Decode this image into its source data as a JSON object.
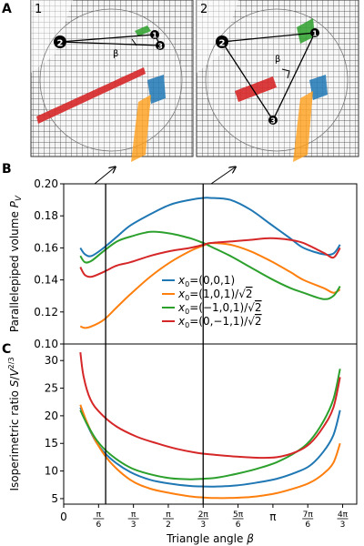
{
  "panel_labels": {
    "a": "A",
    "b": "B",
    "c": "C"
  },
  "renders": {
    "left_number": "1",
    "right_number": "2",
    "vertex_labels": [
      "2",
      "1",
      "3"
    ],
    "angle_label": "β"
  },
  "colors": {
    "blue": "#1f77b4",
    "orange": "#ff7f0e",
    "green": "#2ca02c",
    "red": "#d62728",
    "vline": "#000000"
  },
  "chart_data": [
    {
      "type": "line",
      "panel": "B",
      "ylabel": "Parallelepiped volume P_V",
      "xlim": [
        0,
        4.4
      ],
      "ylim": [
        0.1,
        0.2
      ],
      "yticks": [
        "0.10",
        "0.12",
        "0.14",
        "0.16",
        "0.18",
        "0.20"
      ],
      "grid": false,
      "legend_position": "center",
      "markers_x": [
        0.63,
        2.094
      ],
      "series": [
        {
          "name": "x0=(0,0,1)",
          "color": "blue",
          "x": [
            0.25,
            0.32,
            0.42,
            0.6,
            0.8,
            1.0,
            1.3,
            1.6,
            1.9,
            2.1,
            2.2,
            2.5,
            2.8,
            3.1,
            3.4,
            3.6,
            3.9,
            4.05,
            4.15
          ],
          "y": [
            0.16,
            0.156,
            0.155,
            0.16,
            0.167,
            0.174,
            0.181,
            0.187,
            0.19,
            0.1912,
            0.1912,
            0.19,
            0.184,
            0.175,
            0.166,
            0.16,
            0.156,
            0.1565,
            0.162
          ]
        },
        {
          "name": "x0=(1,0,1)/√2",
          "color": "orange",
          "x": [
            0.25,
            0.32,
            0.42,
            0.6,
            0.8,
            1.0,
            1.3,
            1.6,
            1.9,
            2.1,
            2.2,
            2.5,
            2.8,
            3.1,
            3.4,
            3.6,
            3.9,
            4.05,
            4.15
          ],
          "y": [
            0.111,
            0.11,
            0.111,
            0.115,
            0.123,
            0.131,
            0.142,
            0.151,
            0.158,
            0.1615,
            0.163,
            0.162,
            0.158,
            0.152,
            0.145,
            0.14,
            0.135,
            0.132,
            0.134
          ]
        },
        {
          "name": "x0=(−1,0,1)/√2",
          "color": "green",
          "x": [
            0.25,
            0.32,
            0.42,
            0.6,
            0.8,
            1.0,
            1.3,
            1.6,
            1.9,
            2.1,
            2.2,
            2.5,
            2.8,
            3.1,
            3.4,
            3.6,
            3.9,
            4.05,
            4.15
          ],
          "y": [
            0.155,
            0.151,
            0.152,
            0.158,
            0.164,
            0.167,
            0.17,
            0.169,
            0.166,
            0.163,
            0.161,
            0.155,
            0.148,
            0.141,
            0.135,
            0.132,
            0.128,
            0.13,
            0.136
          ]
        },
        {
          "name": "x0=(0,−1,1)/√2",
          "color": "red",
          "x": [
            0.25,
            0.32,
            0.42,
            0.6,
            0.8,
            1.0,
            1.3,
            1.6,
            1.9,
            2.1,
            2.2,
            2.5,
            2.8,
            3.1,
            3.4,
            3.6,
            3.9,
            4.05,
            4.15
          ],
          "y": [
            0.148,
            0.143,
            0.142,
            0.145,
            0.149,
            0.151,
            0.155,
            0.158,
            0.16,
            0.162,
            0.163,
            0.164,
            0.165,
            0.166,
            0.165,
            0.163,
            0.157,
            0.154,
            0.16
          ]
        }
      ]
    },
    {
      "type": "line",
      "panel": "C",
      "ylabel": "Isoperimetric ratio S/V^(2/3)",
      "xlabel": "Triangle angle β",
      "xlim": [
        0,
        4.4
      ],
      "ylim": [
        4,
        33
      ],
      "yticks": [
        "5",
        "10",
        "15",
        "20",
        "25",
        "30"
      ],
      "xticks": [
        {
          "label": "0",
          "value": 0
        },
        {
          "label": "π/6",
          "value": 0.5236
        },
        {
          "label": "π/3",
          "value": 1.0472
        },
        {
          "label": "π/2",
          "value": 1.5708
        },
        {
          "label": "2π/3",
          "value": 2.0944
        },
        {
          "label": "5π/6",
          "value": 2.618
        },
        {
          "label": "π",
          "value": 3.1416
        },
        {
          "label": "7π/6",
          "value": 3.6652
        },
        {
          "label": "4π/3",
          "value": 4.1888
        }
      ],
      "grid": false,
      "markers_x": [
        0.63,
        2.094
      ],
      "series": [
        {
          "name": "x0=(0,0,1)",
          "color": "blue",
          "x": [
            0.25,
            0.35,
            0.5,
            0.7,
            1.0,
            1.3,
            1.6,
            1.9,
            2.1,
            2.3,
            2.6,
            2.9,
            3.2,
            3.5,
            3.7,
            3.9,
            4.05,
            4.15
          ],
          "y": [
            21.5,
            18.5,
            15.0,
            12.3,
            9.8,
            8.4,
            7.7,
            7.3,
            7.2,
            7.2,
            7.4,
            7.9,
            8.6,
            9.8,
            11.0,
            13.5,
            16.5,
            21.0
          ]
        },
        {
          "name": "x0=(1,0,1)/√2",
          "color": "orange",
          "x": [
            0.25,
            0.35,
            0.5,
            0.7,
            1.0,
            1.3,
            1.6,
            1.9,
            2.1,
            2.3,
            2.6,
            2.9,
            3.2,
            3.5,
            3.7,
            3.9,
            4.05,
            4.15
          ],
          "y": [
            22.0,
            18.8,
            15.0,
            11.6,
            8.4,
            6.8,
            6.0,
            5.4,
            5.2,
            5.1,
            5.15,
            5.4,
            6.0,
            7.0,
            7.9,
            9.5,
            11.5,
            15.0
          ]
        },
        {
          "name": "x0=(−1,0,1)/√2",
          "color": "green",
          "x": [
            0.25,
            0.35,
            0.5,
            0.7,
            1.0,
            1.3,
            1.6,
            1.9,
            2.1,
            2.3,
            2.6,
            2.9,
            3.2,
            3.5,
            3.7,
            3.9,
            4.05,
            4.15
          ],
          "y": [
            21.0,
            18.5,
            15.5,
            13.0,
            10.6,
            9.4,
            8.7,
            8.5,
            8.6,
            8.8,
            9.5,
            10.4,
            11.6,
            13.5,
            15.5,
            19.0,
            23.0,
            28.5
          ]
        },
        {
          "name": "x0=(0,−1,1)/√2",
          "color": "red",
          "x": [
            0.25,
            0.3,
            0.4,
            0.55,
            0.8,
            1.1,
            1.4,
            1.7,
            2.0,
            2.3,
            2.6,
            2.9,
            3.2,
            3.5,
            3.7,
            3.9,
            4.05,
            4.15
          ],
          "y": [
            31.5,
            27.0,
            23.0,
            20.5,
            18.0,
            16.2,
            15.0,
            14.0,
            13.3,
            12.9,
            12.6,
            12.4,
            12.5,
            13.5,
            15.0,
            18.0,
            21.5,
            27.0
          ]
        }
      ]
    }
  ]
}
